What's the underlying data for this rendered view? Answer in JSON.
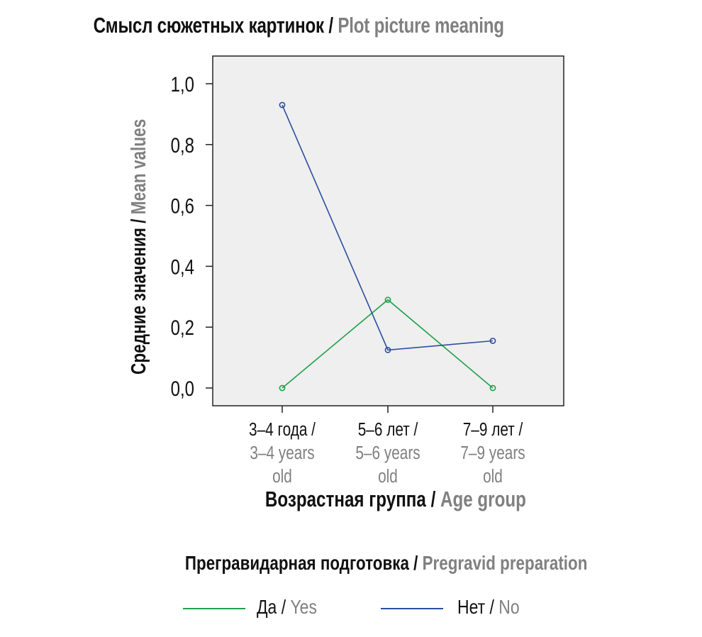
{
  "chart_data": {
    "type": "line",
    "title": {
      "ru": "Смысл сюжетных картинок",
      "sep": " / ",
      "en": "Plot picture meaning"
    },
    "ylabel": {
      "ru": "Средние значения",
      "sep": " / ",
      "en": "Mean values"
    },
    "xlabel": {
      "ru": "Возрастная группа",
      "sep": " / ",
      "en": "Age group"
    },
    "categories": [
      {
        "ru": "3–4 года /",
        "en": "3–4 years",
        "tail": "old"
      },
      {
        "ru": "5–6 лет /",
        "en": "5–6 years",
        "tail": "old"
      },
      {
        "ru": "7–9 лет /",
        "en": "7–9 years",
        "tail": "old"
      }
    ],
    "yticks": [
      "0,0",
      "0,2",
      "0,4",
      "0,6",
      "0,8",
      "1,0"
    ],
    "ylim": [
      0,
      1.0
    ],
    "grid": false,
    "legend_title": {
      "ru": "Прегравидарная подготовка",
      "sep": " / ",
      "en": "Pregravid preparation"
    },
    "legend_position": "bottom",
    "series": [
      {
        "name": {
          "ru": "Да",
          "sep": " / ",
          "en": "Yes"
        },
        "color": "#1fa14a",
        "values": [
          0.0,
          0.29,
          0.0
        ]
      },
      {
        "name": {
          "ru": "Нет",
          "sep": " / ",
          "en": "No"
        },
        "color": "#2a4f9e",
        "values": [
          0.93,
          0.125,
          0.155
        ]
      }
    ],
    "plot_background": "#efefef"
  }
}
